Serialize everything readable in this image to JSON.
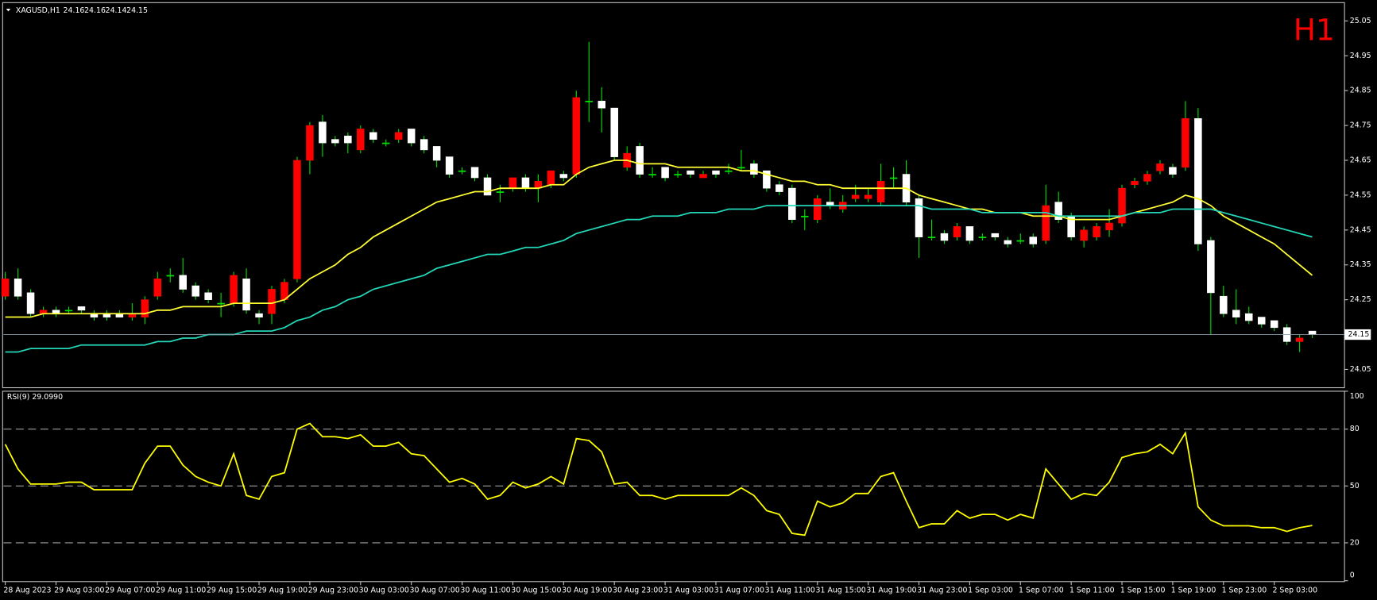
{
  "chart_data": [
    {
      "type": "candlestick",
      "title": "XAGUSD,H1",
      "timeframe_label": "H1",
      "bull_color": "#ff0000",
      "bear_color": "#ffffff",
      "wick_color": "#00e000",
      "ylim": [
        24.0,
        25.1
      ],
      "yticks": [
        24.05,
        24.25,
        24.35,
        24.45,
        24.55,
        24.65,
        24.75,
        24.85,
        24.95,
        25.05
      ],
      "open": [
        24.26,
        24.31,
        24.27,
        24.21,
        24.22,
        24.22,
        24.23,
        24.21,
        24.21,
        24.21,
        24.2,
        24.2,
        24.26,
        24.32,
        24.32,
        24.29,
        24.27,
        24.24,
        24.24,
        24.31,
        24.21,
        24.21,
        24.25,
        24.31,
        24.65,
        24.76,
        24.71,
        24.72,
        24.68,
        24.73,
        24.7,
        24.71,
        24.74,
        24.71,
        24.69,
        24.66,
        24.62,
        24.63,
        24.6,
        24.56,
        24.57,
        24.6,
        24.57,
        24.58,
        24.61,
        24.61,
        24.82,
        24.82,
        24.8,
        24.63,
        24.69,
        24.61,
        24.63,
        24.61,
        24.62,
        24.6,
        24.62,
        24.62,
        24.63,
        24.64,
        24.62,
        24.58,
        24.57,
        24.49,
        24.48,
        24.53,
        24.51,
        24.54,
        24.54,
        24.53,
        24.6,
        24.61,
        24.54,
        24.43,
        24.44,
        24.43,
        24.46,
        24.43,
        24.44,
        24.42,
        24.42,
        24.43,
        24.42,
        24.53,
        24.49,
        24.42,
        24.43,
        24.45,
        24.47,
        24.58,
        24.59,
        24.62,
        24.63,
        24.63,
        24.77,
        24.42,
        24.26,
        24.22,
        24.21,
        24.2,
        24.19,
        24.17,
        24.13,
        24.16
      ],
      "high": [
        24.33,
        24.34,
        24.28,
        24.23,
        24.23,
        24.23,
        24.23,
        24.22,
        24.22,
        24.22,
        24.24,
        24.26,
        24.33,
        24.34,
        24.37,
        24.3,
        24.28,
        24.27,
        24.33,
        24.34,
        24.22,
        24.29,
        24.31,
        24.66,
        24.76,
        24.78,
        24.72,
        24.73,
        24.75,
        24.74,
        24.71,
        24.74,
        24.74,
        24.72,
        24.69,
        24.66,
        24.63,
        24.63,
        24.61,
        24.58,
        24.6,
        24.61,
        24.61,
        24.62,
        24.62,
        24.85,
        24.99,
        24.86,
        24.8,
        24.69,
        24.7,
        24.63,
        24.63,
        24.62,
        24.62,
        24.62,
        24.62,
        24.64,
        24.68,
        24.65,
        24.62,
        24.59,
        24.58,
        24.51,
        24.55,
        24.57,
        24.55,
        24.58,
        24.57,
        24.64,
        24.63,
        24.65,
        24.55,
        24.48,
        24.45,
        24.47,
        24.46,
        24.44,
        24.44,
        24.43,
        24.44,
        24.44,
        24.58,
        24.56,
        24.5,
        24.46,
        24.47,
        24.51,
        24.58,
        24.6,
        24.62,
        24.65,
        24.64,
        24.82,
        24.8,
        24.43,
        24.29,
        24.28,
        24.23,
        24.2,
        24.19,
        24.18,
        24.15,
        24.16
      ],
      "low": [
        24.25,
        24.25,
        24.2,
        24.2,
        24.2,
        24.21,
        24.21,
        24.19,
        24.19,
        24.2,
        24.19,
        24.18,
        24.25,
        24.3,
        24.27,
        24.25,
        24.24,
        24.2,
        24.23,
        24.21,
        24.18,
        24.18,
        24.24,
        24.3,
        24.61,
        24.66,
        24.69,
        24.67,
        24.67,
        24.7,
        24.69,
        24.7,
        24.69,
        24.67,
        24.63,
        24.6,
        24.61,
        24.59,
        24.55,
        24.53,
        24.56,
        24.56,
        24.53,
        24.57,
        24.59,
        24.6,
        24.76,
        24.73,
        24.65,
        24.62,
        24.6,
        24.6,
        24.59,
        24.6,
        24.6,
        24.6,
        24.6,
        24.61,
        24.62,
        24.6,
        24.56,
        24.55,
        24.47,
        24.45,
        24.47,
        24.51,
        24.5,
        24.53,
        24.53,
        24.52,
        24.57,
        24.52,
        24.37,
        24.42,
        24.41,
        24.42,
        24.41,
        24.42,
        24.42,
        24.4,
        24.41,
        24.4,
        24.41,
        24.47,
        24.42,
        24.4,
        24.42,
        24.43,
        24.46,
        24.57,
        24.58,
        24.61,
        24.6,
        24.62,
        24.39,
        24.15,
        24.2,
        24.18,
        24.18,
        24.17,
        24.16,
        24.12,
        24.1,
        24.14
      ],
      "close": [
        24.31,
        24.26,
        24.21,
        24.22,
        24.21,
        24.22,
        24.22,
        24.2,
        24.2,
        24.2,
        24.21,
        24.25,
        24.31,
        24.32,
        24.28,
        24.26,
        24.25,
        24.24,
        24.32,
        24.22,
        24.2,
        24.28,
        24.3,
        24.65,
        24.75,
        24.7,
        24.7,
        24.7,
        24.74,
        24.71,
        24.7,
        24.73,
        24.7,
        24.68,
        24.65,
        24.61,
        24.62,
        24.6,
        24.55,
        24.56,
        24.6,
        24.57,
        24.59,
        24.62,
        24.6,
        24.83,
        24.82,
        24.8,
        24.66,
        24.67,
        24.61,
        24.61,
        24.6,
        24.61,
        24.61,
        24.61,
        24.61,
        24.62,
        24.63,
        24.61,
        24.57,
        24.56,
        24.48,
        24.49,
        24.54,
        24.52,
        24.53,
        24.55,
        24.55,
        24.59,
        24.6,
        24.53,
        24.43,
        24.43,
        24.42,
        24.46,
        24.42,
        24.43,
        24.43,
        24.41,
        24.42,
        24.41,
        24.52,
        24.48,
        24.43,
        24.45,
        24.46,
        24.47,
        24.57,
        24.59,
        24.61,
        24.64,
        24.61,
        24.77,
        24.41,
        24.27,
        24.21,
        24.2,
        24.19,
        24.18,
        24.17,
        24.13,
        24.14,
        24.15
      ],
      "series": [
        {
          "color": "#ffff33",
          "values": [
            24.2,
            24.2,
            24.2,
            24.21,
            24.21,
            24.21,
            24.21,
            24.21,
            24.21,
            24.21,
            24.21,
            24.21,
            24.22,
            24.22,
            24.23,
            24.23,
            24.23,
            24.23,
            24.24,
            24.24,
            24.24,
            24.24,
            24.25,
            24.28,
            24.31,
            24.33,
            24.35,
            24.38,
            24.4,
            24.43,
            24.45,
            24.47,
            24.49,
            24.51,
            24.53,
            24.54,
            24.55,
            24.56,
            24.56,
            24.57,
            24.57,
            24.57,
            24.57,
            24.58,
            24.58,
            24.61,
            24.63,
            24.64,
            24.65,
            24.65,
            24.64,
            24.64,
            24.64,
            24.63,
            24.63,
            24.63,
            24.63,
            24.63,
            24.62,
            24.62,
            24.61,
            24.6,
            24.59,
            24.59,
            24.58,
            24.58,
            24.57,
            24.57,
            24.57,
            24.57,
            24.57,
            24.57,
            24.55,
            24.54,
            24.53,
            24.52,
            24.51,
            24.51,
            24.5,
            24.5,
            24.5,
            24.49,
            24.49,
            24.49,
            24.48,
            24.48,
            24.48,
            24.48,
            24.49,
            24.5,
            24.51,
            24.52,
            24.53,
            24.55,
            24.54,
            24.52,
            24.49,
            24.47,
            24.45,
            24.43,
            24.41,
            24.38,
            24.35,
            24.32
          ]
        },
        {
          "color": "#22d8b8",
          "values": [
            24.1,
            24.1,
            24.11,
            24.11,
            24.11,
            24.11,
            24.12,
            24.12,
            24.12,
            24.12,
            24.12,
            24.12,
            24.13,
            24.13,
            24.14,
            24.14,
            24.15,
            24.15,
            24.15,
            24.16,
            24.16,
            24.16,
            24.17,
            24.19,
            24.2,
            24.22,
            24.23,
            24.25,
            24.26,
            24.28,
            24.29,
            24.3,
            24.31,
            24.32,
            24.34,
            24.35,
            24.36,
            24.37,
            24.38,
            24.38,
            24.39,
            24.4,
            24.4,
            24.41,
            24.42,
            24.44,
            24.45,
            24.46,
            24.47,
            24.48,
            24.48,
            24.49,
            24.49,
            24.49,
            24.5,
            24.5,
            24.5,
            24.51,
            24.51,
            24.51,
            24.52,
            24.52,
            24.52,
            24.52,
            24.52,
            24.52,
            24.52,
            24.52,
            24.52,
            24.52,
            24.52,
            24.52,
            24.52,
            24.51,
            24.51,
            24.51,
            24.51,
            24.5,
            24.5,
            24.5,
            24.5,
            24.5,
            24.5,
            24.49,
            24.49,
            24.49,
            24.49,
            24.49,
            24.49,
            24.5,
            24.5,
            24.5,
            24.51,
            24.51,
            24.51,
            24.51,
            24.5,
            24.49,
            24.48,
            24.47,
            24.46,
            24.45,
            24.44,
            24.43
          ]
        }
      ]
    },
    {
      "type": "line",
      "title": "RSI(9) 29.0990",
      "ylim": [
        0,
        100
      ],
      "yticks": [
        0,
        20,
        50,
        80,
        100
      ],
      "categories": [
        "28 Aug 2023",
        null,
        null,
        null,
        "29 Aug 03:00",
        null,
        null,
        null,
        "29 Aug 07:00",
        null,
        null,
        null,
        "29 Aug 11:00",
        null,
        null,
        null,
        "29 Aug 15:00",
        null,
        null,
        null,
        "29 Aug 19:00",
        null,
        null,
        null,
        "29 Aug 23:00",
        null,
        null,
        null,
        "30 Aug 03:00",
        null,
        null,
        null,
        "30 Aug 07:00",
        null,
        null,
        null,
        "30 Aug 11:00",
        null,
        null,
        null,
        "30 Aug 15:00",
        null,
        null,
        null,
        "30 Aug 19:00",
        null,
        null,
        null,
        "30 Aug 23:00",
        null,
        null,
        null,
        "31 Aug 03:00",
        null,
        null,
        null,
        "31 Aug 07:00",
        null,
        null,
        null,
        "31 Aug 11:00",
        null,
        null,
        null,
        "31 Aug 15:00",
        null,
        null,
        null,
        "31 Aug 19:00",
        null,
        null,
        null,
        "31 Aug 23:00",
        null,
        null,
        null,
        "1 Sep 03:00",
        null,
        null,
        null,
        "1 Sep 07:00",
        null,
        null,
        null,
        "1 Sep 11:00",
        null,
        null,
        null,
        "1 Sep 15:00",
        null,
        null,
        null,
        "1 Sep 19:00",
        null,
        null,
        null,
        "1 Sep 23:00",
        null,
        null,
        null,
        "2 Sep 03:00",
        null,
        null,
        null
      ],
      "series": [
        {
          "color": "#ffff00",
          "values": [
            72,
            59,
            51,
            51,
            51,
            52,
            52,
            48,
            48,
            48,
            48,
            62,
            71,
            71,
            61,
            55,
            52,
            50,
            67,
            45,
            43,
            55,
            57,
            80,
            83,
            76,
            76,
            75,
            77,
            71,
            71,
            73,
            67,
            66,
            59,
            52,
            54,
            51,
            43,
            45,
            52,
            49,
            51,
            55,
            51,
            75,
            74,
            68,
            51,
            52,
            45,
            45,
            43,
            45,
            45,
            45,
            45,
            45,
            49,
            45,
            37,
            35,
            25,
            24,
            42,
            39,
            41,
            46,
            46,
            55,
            57,
            42,
            28,
            30,
            30,
            37,
            33,
            35,
            35,
            32,
            35,
            33,
            59,
            51,
            43,
            46,
            45,
            52,
            65,
            67,
            68,
            72,
            67,
            78,
            39,
            32,
            29,
            29,
            29,
            28,
            28,
            26,
            28,
            29.1
          ]
        }
      ]
    }
  ]
}
